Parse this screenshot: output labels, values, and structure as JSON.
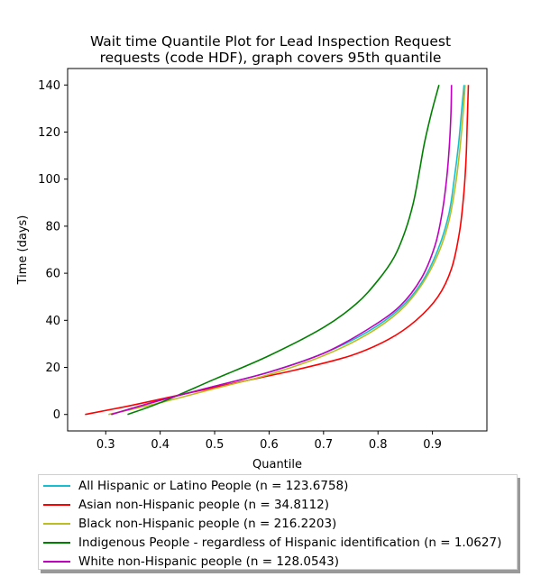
{
  "chart_data": {
    "type": "line",
    "title_line1": "Wait time Quantile Plot for Lead Inspection Request",
    "title_line2": "requests (code HDF), graph covers 95th quantile",
    "xlabel": "Quantile",
    "ylabel": "Time (days)",
    "xlim": [
      0.23,
      1.0
    ],
    "ylim": [
      -7,
      147
    ],
    "xticks": [
      0.3,
      0.4,
      0.5,
      0.6,
      0.7,
      0.8,
      0.9
    ],
    "xtick_labels": [
      "0.3",
      "0.4",
      "0.5",
      "0.6",
      "0.7",
      "0.8",
      "0.9"
    ],
    "yticks": [
      0,
      20,
      40,
      60,
      80,
      100,
      120,
      140
    ],
    "ytick_labels": [
      "0",
      "20",
      "40",
      "60",
      "80",
      "100",
      "120",
      "140"
    ],
    "grid": false,
    "legend_position": "below",
    "series": [
      {
        "name": "All Hispanic or Latino People (n = 123.6758)",
        "color": "#17becf",
        "x": [
          0.31,
          0.4,
          0.5,
          0.6,
          0.7,
          0.78,
          0.84,
          0.88,
          0.91,
          0.93,
          0.94,
          0.948,
          0.954,
          0.958
        ],
        "y": [
          0,
          6,
          12,
          18,
          26,
          35,
          45,
          56,
          70,
          85,
          100,
          115,
          130,
          140
        ]
      },
      {
        "name": "Asian non-Hispanic people (n = 34.8112)",
        "color": "#ff0000",
        "x": [
          0.262,
          0.35,
          0.45,
          0.55,
          0.65,
          0.75,
          0.82,
          0.87,
          0.91,
          0.935,
          0.95,
          0.958,
          0.962,
          0.964,
          0.966
        ],
        "y": [
          0,
          4,
          9,
          14,
          19,
          25,
          32,
          40,
          50,
          62,
          78,
          95,
          110,
          125,
          140
        ]
      },
      {
        "name": "Black non-Hispanic people (n = 216.2203)",
        "color": "#bcbd22",
        "x": [
          0.305,
          0.4,
          0.5,
          0.6,
          0.7,
          0.78,
          0.84,
          0.88,
          0.91,
          0.93,
          0.942,
          0.95,
          0.956,
          0.96
        ],
        "y": [
          0,
          5,
          11,
          17,
          25,
          34,
          44,
          55,
          68,
          82,
          97,
          112,
          127,
          140
        ]
      },
      {
        "name": "Indigenous People - regardless of Hispanic identification (n = 1.0627)",
        "color": "#008000",
        "x": [
          0.34,
          0.4,
          0.5,
          0.6,
          0.7,
          0.76,
          0.8,
          0.83,
          0.85,
          0.865,
          0.875,
          0.885,
          0.898,
          0.912
        ],
        "y": [
          0,
          5,
          15,
          25,
          37,
          47,
          57,
          67,
          78,
          90,
          102,
          115,
          128,
          140
        ]
      },
      {
        "name": "White non-Hispanic people (n = 128.0543)",
        "color": "#bf00bf",
        "x": [
          0.31,
          0.4,
          0.5,
          0.6,
          0.7,
          0.78,
          0.84,
          0.88,
          0.905,
          0.918,
          0.926,
          0.931,
          0.934,
          0.935
        ],
        "y": [
          0,
          6,
          12,
          18,
          26,
          36,
          46,
          58,
          72,
          86,
          100,
          114,
          128,
          140
        ]
      }
    ]
  }
}
